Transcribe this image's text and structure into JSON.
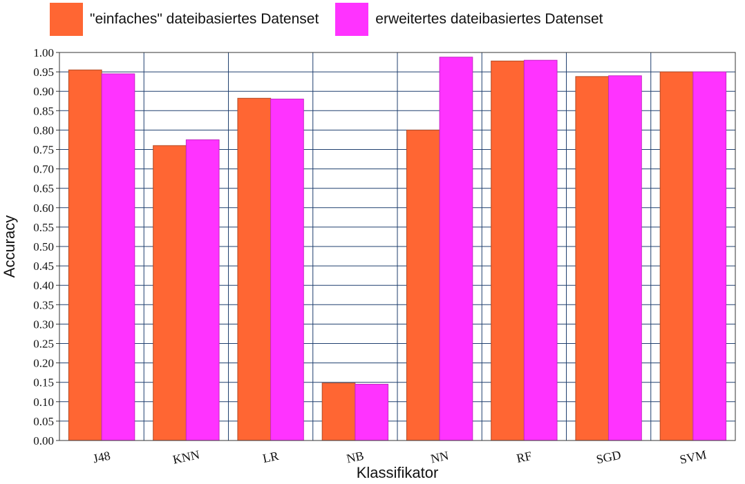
{
  "chart_data": {
    "type": "bar",
    "title": "",
    "xlabel": "Klassifikator",
    "ylabel": "Accuracy",
    "ylim": [
      0,
      1.0
    ],
    "ytick_step": 0.05,
    "grid": true,
    "legend_position": "top-left",
    "categories": [
      "J48",
      "KNN",
      "LR",
      "NB",
      "NN",
      "RF",
      "SGD",
      "SVM"
    ],
    "series": [
      {
        "name": "\"einfaches\" dateibasiertes Datenset",
        "color": "#FF6633",
        "values": [
          0.955,
          0.76,
          0.882,
          0.148,
          0.8,
          0.978,
          0.938,
          0.95
        ]
      },
      {
        "name": "erweitertes dateibasiertes Datenset",
        "color": "#FF33FF",
        "values": [
          0.945,
          0.775,
          0.88,
          0.145,
          0.988,
          0.98,
          0.94,
          0.95
        ]
      }
    ]
  }
}
